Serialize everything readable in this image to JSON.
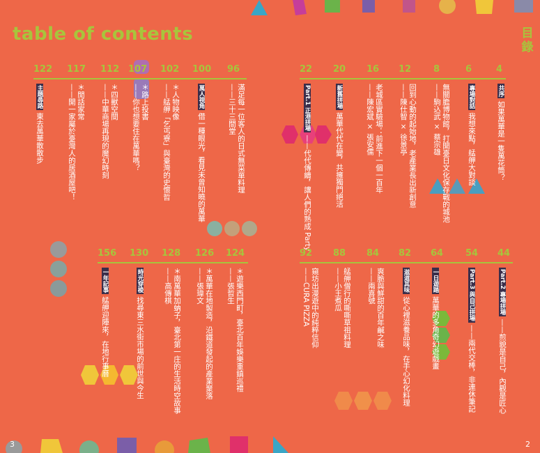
{
  "heading": "table of contents",
  "side_title": "目錄",
  "footer": {
    "left": "3",
    "right": "2"
  },
  "top_left": {
    "numbers": [
      "122",
      "117",
      "112",
      "107",
      "102",
      "100",
      "96"
    ],
    "columns": [
      {
        "tag": "主題尋路",
        "lines": [
          "東去萬華散散步"
        ]
      },
      {
        "tag": "",
        "lines": [
          "＊閒話家常",
          "——開一家屬於臺灣人的居酒屋吧！"
        ]
      },
      {
        "tag": "",
        "lines": [
          "＊四獸空間",
          "——中華商場再現的魔幻時刻"
        ]
      },
      {
        "tag": "",
        "lines": [
          "＊路上投書",
          "——你也想要住在萬華嗎？"
        ]
      },
      {
        "tag": "",
        "lines": [
          "＊人物映像",
          "——艋舺「乞丐寮」與臺灣的史懷哲"
        ]
      },
      {
        "tag": "萬人視角",
        "lines": [
          "借一種眼光，看見未曾知曉的萬華"
        ]
      },
      {
        "tag": "",
        "lines": [
          "滿足每一位客人的日式無菜單料理",
          "——三十三間堂"
        ]
      }
    ]
  },
  "top_right": {
    "numbers": [
      "22",
      "20",
      "16",
      "12",
      "8",
      "6",
      "4"
    ],
    "columns": [
      {
        "tag": "Part.1 正港拼場",
        "lines": [
          "——代代傳續，讓人們的熟成 Party"
        ]
      },
      {
        "tag": "新舊拼場",
        "lines": [
          "萬華代代在變，共擁獨門絕活"
        ]
      },
      {
        "tag": "",
        "lines": [
          "老城區實驗場：前進下一個一百年",
          "——陳宏斌 × 張安儒"
        ]
      },
      {
        "tag": "",
        "lines": [
          "回到心動的起始地，老產業長出新創意",
          "——陳仕智 × 徐景亭"
        ]
      },
      {
        "tag": "",
        "lines": [
          "無關膽博物館，打開臺日文化保存戰的城池",
          "——駒込武 × 蔡宗雄"
        ]
      },
      {
        "tag": "專場對話",
        "lines": [
          "我想來點，艋舺大對談"
        ]
      },
      {
        "tag": "共序",
        "lines": [
          "如果萬華是一隻萬花筒？"
        ]
      }
    ]
  },
  "bottom_left": {
    "numbers": [
      "156",
      "130",
      "128",
      "126",
      "124"
    ],
    "columns": [
      {
        "tag": "一年記事",
        "lines": [
          "艋舺迎陣來，在地行事曆"
        ]
      },
      {
        "tag": "時光穿梭",
        "lines": [
          "找尋東三水街市場的前世與今生"
        ]
      },
      {
        "tag": "",
        "lines": [
          "＊南萬華加蚋子，臺北第一庄的生活時空故事",
          "——高傳棋"
        ]
      },
      {
        "tag": "",
        "lines": [
          "＊萬華在地製造，沿鐵道發起的產業聚落",
          "——張瑋文"
        ]
      },
      {
        "tag": "",
        "lines": [
          "＊遊樂西門町，臺北百年娛樂重鎮巡禮",
          "——張哲生"
        ]
      }
    ]
  },
  "bottom_right": {
    "numbers": [
      "92",
      "88",
      "84",
      "82",
      "64",
      "54",
      "44"
    ],
    "columns": [
      {
        "tag": "",
        "lines": [
          "窺坊出漫遊中的純粹信仰",
          "——CURA PIZZA"
        ]
      },
      {
        "tag": "",
        "lines": [
          "艋舺僧行的嘶嘶草祖料理",
          "——小王煮瓜"
        ]
      },
      {
        "tag": "",
        "lines": [
          "爽脆與鮮甜的百年鹹之味",
          "——兩喜號"
        ]
      },
      {
        "tag": "滋道其味",
        "lines": [
          "從心裡滋養品味，在手心幻化料理"
        ]
      },
      {
        "tag": "一日遊踏",
        "lines": [
          "萬華的多角奇幻遊戲畫"
        ]
      },
      {
        "tag": "Part.3 與自己拼場",
        "lines": [
          "——兩代交棒，非連休筆記"
        ]
      },
      {
        "tag": "Part.2 專場拼場",
        "lines": [
          "——煎貌是自己，內觀是匠心"
        ]
      }
    ]
  }
}
